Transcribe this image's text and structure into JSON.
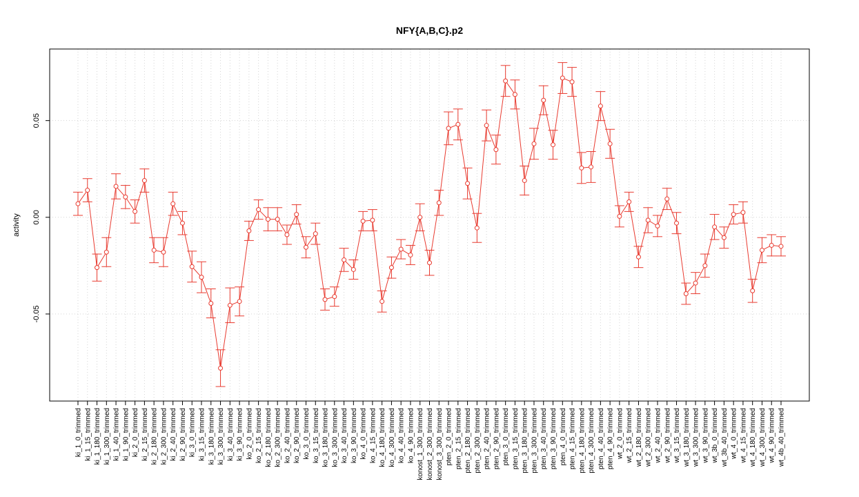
{
  "chart_data": {
    "type": "line",
    "title": "NFY{A,B,C}.p2",
    "xlabel": "",
    "ylabel": "activity",
    "ylim": [
      -0.095,
      0.087
    ],
    "yticks": [
      0.05,
      0.0,
      -0.05
    ],
    "ytick_labels": [
      "0.05",
      "0.00",
      "-0.05"
    ],
    "grid": true,
    "line_color": "#e8392e",
    "categories": [
      "ki_1_0_trimmed",
      "ki_1_15_trimmed",
      "ki_1_180_trimmed",
      "ki_1_300_trimmed",
      "ki_1_40_trimmed",
      "ki_1_90_trimmed",
      "ki_2_0_trimmed",
      "ki_2_15_trimmed",
      "ki_2_180_trimmed",
      "ki_2_300_trimmed",
      "ki_2_40_trimmed",
      "ki_2_90_trimmed",
      "ki_3_0_trimmed",
      "ki_3_15_trimmed",
      "ki_3_180_trimmed",
      "ki_3_300_trimmed",
      "ki_3_40_trimmed",
      "ki_3_90_trimmed",
      "ko_2_0_trimmed",
      "ko_2_15_trimmed",
      "ko_2_180_trimmed",
      "ko_2_300_trimmed",
      "ko_2_40_trimmed",
      "ko_2_90_trimmed",
      "ko_3_0_trimmed",
      "ko_3_15_trimmed",
      "ko_3_180_trimmed",
      "ko_3_300_trimmed",
      "ko_3_40_trimmed",
      "ko_3_90_trimmed",
      "ko_4_0_trimmed",
      "ko_4_15_trimmed",
      "ko_4_180_trimmed",
      "ko_4_300_trimmed",
      "ko_4_40_trimmed",
      "ko_4_90_trimmed",
      "konost_1_300_trimmed",
      "konost_2_300_trimmed",
      "konost_3_300_trimmed",
      "pten_2_0_trimmed",
      "pten_2_15_trimmed",
      "pten_2_180_trimmed",
      "pten_2_300_trimmed",
      "pten_2_40_trimmed",
      "pten_2_90_trimmed",
      "pten_3_0_trimmed",
      "pten_3_15_trimmed",
      "pten_3_180_trimmed",
      "pten_3_300_trimmed",
      "pten_3_40_trimmed",
      "pten_3_90_trimmed",
      "pten_4_0_trimmed",
      "pten_4_15_trimmed",
      "pten_4_180_trimmed",
      "pten_4_300_trimmed",
      "pten_4_40_trimmed",
      "pten_4_90_trimmed",
      "wt_2_0_trimmed",
      "wt_2_15_trimmed",
      "wt_2_180_trimmed",
      "wt_2_300_trimmed",
      "wt_2_40_trimmed",
      "wt_2_90_trimmed",
      "wt_3_15_trimmed",
      "wt_3_180_trimmed",
      "wt_3_300_trimmed",
      "wt_3_90_trimmed",
      "wt_3b_0_trimmed",
      "wt_3b_40_trimmed",
      "wt_4_0_trimmed",
      "wt_4_15_trimmed",
      "wt_4_180_trimmed",
      "wt_4_300_trimmed",
      "wt_4_90_trimmed",
      "wt_4b_40_trimmed"
    ],
    "values": [
      0.007,
      0.014,
      -0.026,
      -0.018,
      0.016,
      0.0105,
      0.003,
      0.019,
      -0.017,
      -0.018,
      0.007,
      -0.003,
      -0.0255,
      -0.031,
      -0.0445,
      -0.078,
      -0.0455,
      -0.0435,
      -0.007,
      0.004,
      -0.001,
      -0.001,
      -0.009,
      0.0015,
      -0.0155,
      -0.0085,
      -0.0425,
      -0.041,
      -0.022,
      -0.027,
      -0.002,
      -0.0015,
      -0.0435,
      -0.026,
      -0.0165,
      -0.0195,
      0.0,
      -0.0235,
      0.0075,
      0.046,
      0.048,
      0.0175,
      -0.0055,
      0.0475,
      0.035,
      0.0705,
      0.0635,
      0.019,
      0.038,
      0.0605,
      0.0375,
      0.072,
      0.07,
      0.0255,
      0.026,
      0.0575,
      0.038,
      0.0005,
      0.008,
      -0.0205,
      -0.0015,
      -0.0045,
      0.0095,
      -0.003,
      -0.0395,
      -0.034,
      -0.025,
      -0.005,
      -0.0105,
      0.0015,
      0.0025,
      -0.038,
      -0.017,
      -0.0145,
      -0.015
    ],
    "errors": [
      0.006,
      0.006,
      0.007,
      0.0075,
      0.0065,
      0.006,
      0.006,
      0.006,
      0.0065,
      0.0075,
      0.006,
      0.006,
      0.008,
      0.008,
      0.0075,
      0.0095,
      0.009,
      0.0075,
      0.005,
      0.005,
      0.006,
      0.006,
      0.005,
      0.005,
      0.0055,
      0.0055,
      0.0055,
      0.005,
      0.006,
      0.005,
      0.005,
      0.0055,
      0.0055,
      0.0055,
      0.005,
      0.005,
      0.007,
      0.0065,
      0.0065,
      0.0085,
      0.008,
      0.008,
      0.0075,
      0.008,
      0.0075,
      0.008,
      0.0075,
      0.0075,
      0.008,
      0.0075,
      0.0075,
      0.008,
      0.0075,
      0.008,
      0.008,
      0.0075,
      0.0075,
      0.0055,
      0.005,
      0.0055,
      0.0065,
      0.0055,
      0.0055,
      0.0055,
      0.0055,
      0.0055,
      0.006,
      0.0065,
      0.0055,
      0.005,
      0.0055,
      0.006,
      0.0065,
      0.0055,
      0.005
    ]
  }
}
